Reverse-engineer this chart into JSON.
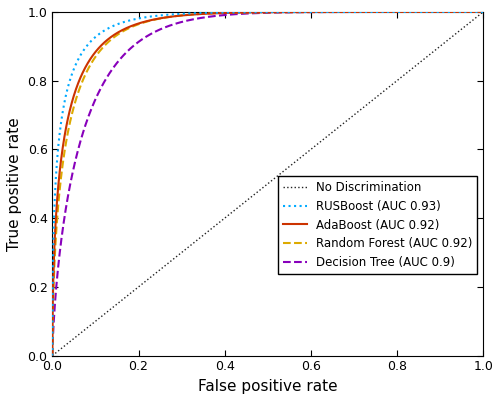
{
  "title": "",
  "xlabel": "False positive rate",
  "ylabel": "True positive rate",
  "xlim": [
    0,
    1
  ],
  "ylim": [
    0,
    1
  ],
  "legend_labels": [
    "No Discrimination",
    "RUSBoost (AUC 0.93)",
    "AdaBoost (AUC 0.92)",
    "Random Forest (AUC 0.92)",
    "Decision Tree (AUC 0.9)"
  ],
  "line_colors": [
    "#222222",
    "#00aaff",
    "#cc3300",
    "#ddaa00",
    "#8800bb"
  ],
  "line_widths": [
    1.0,
    1.5,
    1.5,
    1.5,
    1.5
  ],
  "figsize": [
    5.0,
    4.01
  ],
  "dpi": 100,
  "shape_params": [
    0.45,
    0.52,
    0.58,
    0.72
  ],
  "auc_targets": [
    0.93,
    0.92,
    0.92,
    0.9
  ]
}
